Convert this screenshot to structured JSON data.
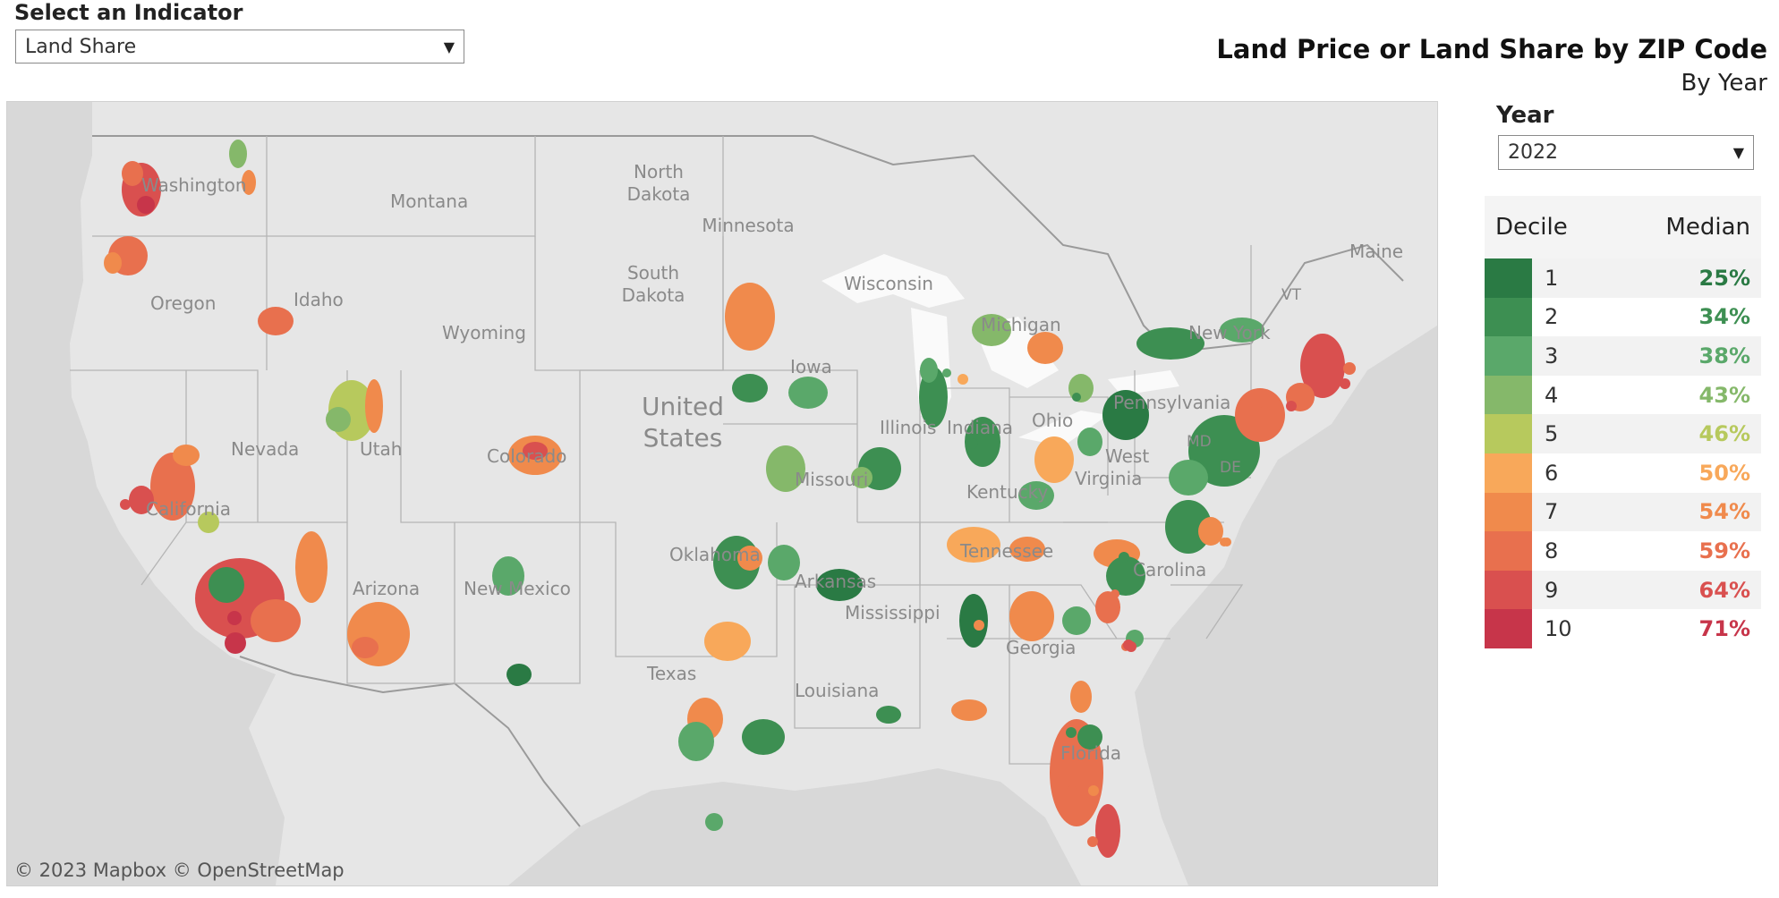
{
  "indicator": {
    "label": "Select an Indicator",
    "value": "Land Share"
  },
  "header": {
    "title": "Land Price or Land Share by ZIP Code",
    "subtitle": "By Year"
  },
  "year": {
    "label": "Year",
    "value": "2022"
  },
  "legend": {
    "col_decile": "Decile",
    "col_median": "Median",
    "rows": [
      {
        "decile": "1",
        "median": "25%",
        "color": "#2a7a44"
      },
      {
        "decile": "2",
        "median": "34%",
        "color": "#3d8f52"
      },
      {
        "decile": "3",
        "median": "38%",
        "color": "#5aa86a"
      },
      {
        "decile": "4",
        "median": "43%",
        "color": "#85b86a"
      },
      {
        "decile": "5",
        "median": "46%",
        "color": "#b7c95d"
      },
      {
        "decile": "6",
        "median": "50%",
        "color": "#f8a85a"
      },
      {
        "decile": "7",
        "median": "54%",
        "color": "#f08a4c"
      },
      {
        "decile": "8",
        "median": "59%",
        "color": "#e8704e"
      },
      {
        "decile": "9",
        "median": "64%",
        "color": "#d9504f"
      },
      {
        "decile": "10",
        "median": "71%",
        "color": "#c7354a"
      }
    ]
  },
  "map": {
    "attribution": "© 2023 Mapbox  © OpenStreetMap",
    "country_label": [
      "United",
      "States"
    ],
    "state_labels": [
      "Washington",
      "Montana",
      "North",
      "Dakota",
      "South",
      "Dakota",
      "Minnesota",
      "Wisconsin",
      "Oregon",
      "Idaho",
      "Wyoming",
      "Iowa",
      "Michigan",
      "New York",
      "Maine",
      "VT",
      "Pennsylvania",
      "Illinois",
      "Indiana",
      "Ohio",
      "Nevada",
      "Utah",
      "Colorado",
      "California",
      "Missouri",
      "Kentucky",
      "West",
      "Virginia",
      "MD",
      "DE",
      "Tennessee",
      "Carolina",
      "Oklahoma",
      "Arkansas",
      "Arizona",
      "New Mexico",
      "Mississippi",
      "Georgia",
      "Texas",
      "Louisiana",
      "Florida"
    ]
  }
}
